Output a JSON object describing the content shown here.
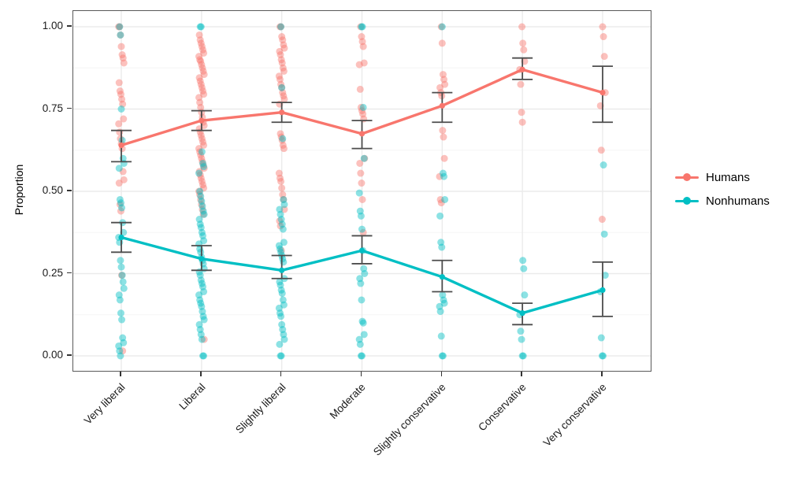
{
  "figure": {
    "background": "#ffffff"
  },
  "y_axis": {
    "title": "Proportion",
    "tick_labels": [
      "1.00",
      "0.75",
      "0.50",
      "0.25",
      "0.00"
    ],
    "tick_values": [
      1.0,
      0.75,
      0.5,
      0.25,
      0.0
    ],
    "minor_tick_values": [
      0.875,
      0.625,
      0.375,
      0.125
    ]
  },
  "x_axis": {
    "categories": [
      "Very liberal",
      "Liberal",
      "Slightly liberal",
      "Moderate",
      "Slightly conservative",
      "Conservative",
      "Very conservative"
    ]
  },
  "legend": {
    "position": "right",
    "items": [
      {
        "label": "Humans",
        "color": "#F8766D"
      },
      {
        "label": "Nonhumans",
        "color": "#00BFC4"
      }
    ]
  },
  "style": {
    "grid_major_color": "#ebebeb",
    "grid_minor_color": "#f5f5f5",
    "panel_border_color": "#595959",
    "errorbar_color": "#4d4d4d",
    "point_opacity": 0.45,
    "point_diameter": 9
  },
  "chart_data": {
    "type": "line",
    "subtype": "means-with-errorbars-and-jittered-points",
    "title": "",
    "xlabel": "",
    "ylabel": "Proportion",
    "ylim": [
      0,
      1
    ],
    "grid": true,
    "legend_position": "right",
    "categories": [
      "Very liberal",
      "Liberal",
      "Slightly liberal",
      "Moderate",
      "Slightly conservative",
      "Conservative",
      "Very conservative"
    ],
    "series": [
      {
        "name": "Humans",
        "color": "#F8766D",
        "means": [
          0.64,
          0.715,
          0.74,
          0.675,
          0.76,
          0.87,
          0.8
        ],
        "ci_low": [
          0.59,
          0.685,
          0.71,
          0.63,
          0.71,
          0.84,
          0.71
        ],
        "ci_high": [
          0.685,
          0.745,
          0.77,
          0.715,
          0.8,
          0.905,
          0.88
        ],
        "points": [
          [
            1.0,
            1.0,
            0.975,
            0.94,
            0.915,
            0.905,
            0.89,
            0.83,
            0.805,
            0.795,
            0.78,
            0.765,
            0.72,
            0.705,
            0.68,
            0.66,
            0.645,
            0.63,
            0.56,
            0.535,
            0.525,
            0.46,
            0.44,
            0.245,
            0.015
          ],
          [
            0.975,
            0.96,
            0.95,
            0.94,
            0.93,
            0.92,
            0.91,
            0.9,
            0.895,
            0.885,
            0.875,
            0.865,
            0.855,
            0.845,
            0.835,
            0.825,
            0.815,
            0.805,
            0.795,
            0.785,
            0.77,
            0.755,
            0.74,
            0.725,
            0.71,
            0.7,
            0.69,
            0.68,
            0.67,
            0.66,
            0.65,
            0.64,
            0.63,
            0.62,
            0.61,
            0.6,
            0.59,
            0.58,
            0.57,
            0.56,
            0.55,
            0.54,
            0.53,
            0.52,
            0.51,
            0.5,
            0.49,
            0.475,
            0.46,
            0.445,
            0.43,
            0.05
          ],
          [
            1.0,
            1.0,
            0.97,
            0.96,
            0.945,
            0.935,
            0.925,
            0.915,
            0.9,
            0.89,
            0.875,
            0.865,
            0.85,
            0.84,
            0.825,
            0.815,
            0.8,
            0.79,
            0.78,
            0.765,
            0.675,
            0.665,
            0.655,
            0.64,
            0.63,
            0.555,
            0.54,
            0.53,
            0.51,
            0.49,
            0.475,
            0.445,
            0.41,
            0.395,
            0.32
          ],
          [
            1.0,
            0.97,
            0.955,
            0.94,
            0.89,
            0.885,
            0.81,
            0.755,
            0.745,
            0.735,
            0.72,
            0.6,
            0.585,
            0.555,
            0.525,
            0.475,
            0.375
          ],
          [
            1.0,
            0.95,
            0.855,
            0.84,
            0.825,
            0.815,
            0.8,
            0.79,
            0.685,
            0.665,
            0.6,
            0.545,
            0.475,
            0.465
          ],
          [
            1.0,
            0.95,
            0.93,
            0.895,
            0.87,
            0.825,
            0.74,
            0.71
          ],
          [
            1.0,
            0.97,
            0.91,
            0.8,
            0.76,
            0.625,
            0.415
          ]
        ]
      },
      {
        "name": "Nonhumans",
        "color": "#00BFC4",
        "means": [
          0.36,
          0.295,
          0.26,
          0.32,
          0.24,
          0.13,
          0.2
        ],
        "ci_low": [
          0.315,
          0.26,
          0.235,
          0.28,
          0.195,
          0.095,
          0.12
        ],
        "ci_high": [
          0.405,
          0.335,
          0.305,
          0.365,
          0.29,
          0.16,
          0.285
        ],
        "points": [
          [
            1.0,
            0.975,
            0.75,
            0.655,
            0.6,
            0.585,
            0.57,
            0.475,
            0.465,
            0.45,
            0.405,
            0.375,
            0.36,
            0.345,
            0.29,
            0.27,
            0.245,
            0.225,
            0.205,
            0.185,
            0.17,
            0.13,
            0.11,
            0.055,
            0.04,
            0.03,
            0.015,
            0.0
          ],
          [
            1.0,
            1.0,
            0.62,
            0.585,
            0.575,
            0.555,
            0.5,
            0.485,
            0.47,
            0.455,
            0.44,
            0.43,
            0.415,
            0.4,
            0.39,
            0.375,
            0.365,
            0.35,
            0.34,
            0.325,
            0.315,
            0.3,
            0.29,
            0.28,
            0.265,
            0.255,
            0.245,
            0.23,
            0.22,
            0.21,
            0.195,
            0.185,
            0.17,
            0.16,
            0.15,
            0.135,
            0.12,
            0.11,
            0.095,
            0.08,
            0.065,
            0.05,
            0.0,
            0.0
          ],
          [
            1.0,
            0.815,
            0.66,
            0.475,
            0.46,
            0.445,
            0.43,
            0.415,
            0.4,
            0.385,
            0.345,
            0.335,
            0.325,
            0.315,
            0.305,
            0.295,
            0.285,
            0.235,
            0.225,
            0.215,
            0.2,
            0.19,
            0.17,
            0.155,
            0.145,
            0.13,
            0.12,
            0.095,
            0.08,
            0.065,
            0.05,
            0.035,
            0.0,
            0.0
          ],
          [
            1.0,
            1.0,
            0.755,
            0.6,
            0.495,
            0.44,
            0.425,
            0.385,
            0.32,
            0.265,
            0.25,
            0.235,
            0.22,
            0.17,
            0.105,
            0.1,
            0.065,
            0.05,
            0.035,
            0.0,
            0.0
          ],
          [
            1.0,
            0.555,
            0.545,
            0.475,
            0.425,
            0.345,
            0.33,
            0.185,
            0.17,
            0.16,
            0.15,
            0.135,
            0.06,
            0.0,
            0.0
          ],
          [
            0.29,
            0.265,
            0.185,
            0.125,
            0.075,
            0.05,
            0.0,
            0.0
          ],
          [
            0.58,
            0.37,
            0.245,
            0.195,
            0.055,
            0.0,
            0.0
          ]
        ]
      }
    ]
  }
}
